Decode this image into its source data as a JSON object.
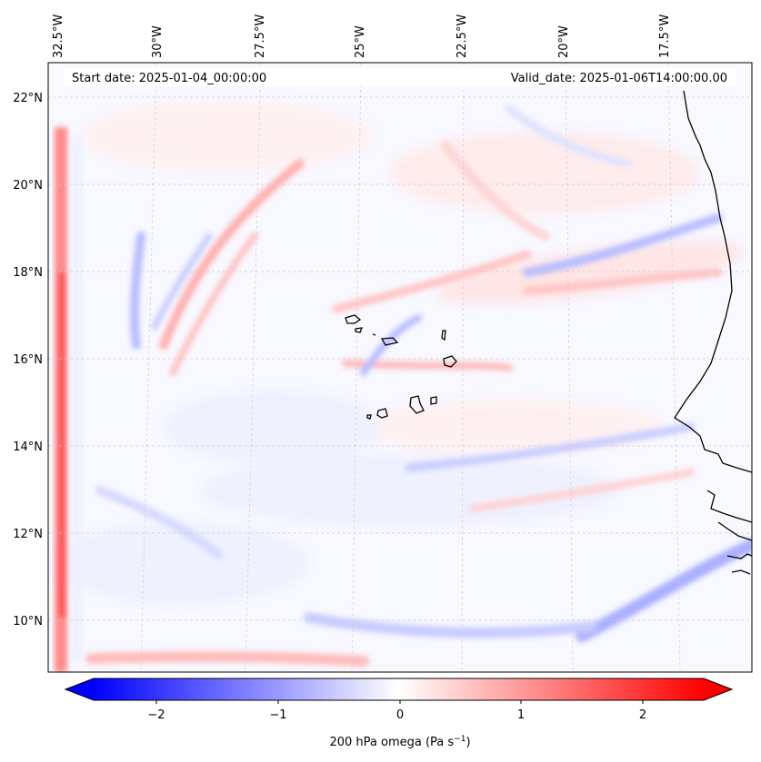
{
  "header": {
    "start_date": "Start date: 2025-01-04_00:00:00",
    "valid_date": "Valid_date: 2025-01-06T14:00:00.00"
  },
  "map": {
    "longitude_labels": [
      "32.5°W",
      "30°W",
      "27.5°W",
      "25°W",
      "22.5°W",
      "20°W",
      "17.5°W"
    ],
    "latitude_labels": [
      "22°N",
      "20°N",
      "18°N",
      "16°N",
      "14°N",
      "12°N",
      "10°N"
    ],
    "field": "200 hPa omega",
    "colormap": "bwr",
    "gridlines": true
  },
  "colorbar": {
    "ticks": [
      "−2",
      "−1",
      "0",
      "1",
      "2"
    ],
    "label_main": "200 hPa omega (Pa s",
    "label_exp": "−1",
    "label_close": ")",
    "range": [
      -2.7,
      2.7
    ],
    "extend": "both"
  }
}
